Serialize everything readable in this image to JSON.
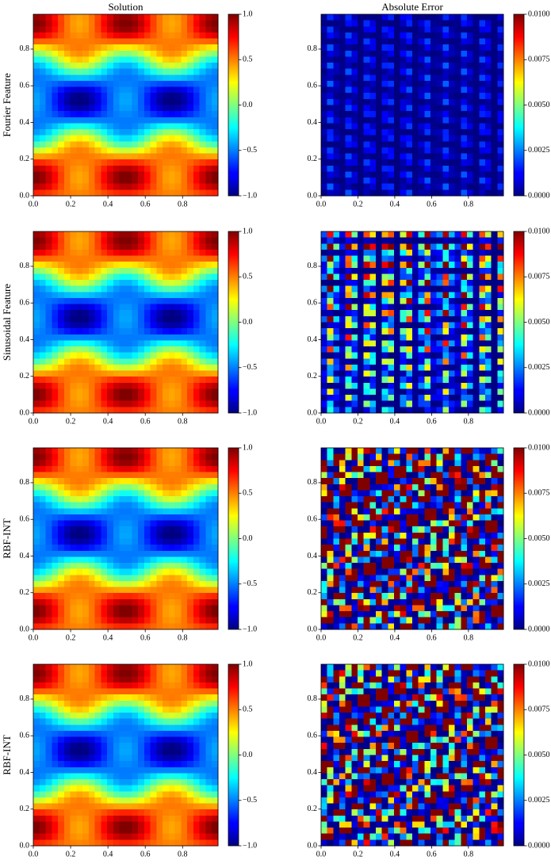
{
  "chart_data": [
    {
      "type": "heatmap",
      "title": "Solution",
      "ylabel": "Fourier Feature",
      "colormap": "jet",
      "xlim": [
        0,
        0.99
      ],
      "ylim": [
        0,
        0.99
      ],
      "xticks": [
        {
          "value": 0,
          "label": "0.0"
        },
        0.2,
        0.4,
        0.6,
        0.8
      ],
      "yticks": [
        {
          "value": 0,
          "label": "0.0"
        },
        0.2,
        0.4,
        0.6,
        0.8
      ],
      "clim": [
        -1,
        1
      ],
      "cticks": [
        {
          "value": -1,
          "label": "−1.0"
        },
        {
          "value": -0.5,
          "label": "−0.5"
        },
        {
          "value": 0,
          "label": "0.0"
        },
        {
          "value": 0.5,
          "label": "0.5"
        },
        {
          "value": 1,
          "label": "1.0"
        }
      ]
    },
    {
      "type": "heatmap",
      "title": "Absolute Error",
      "colormap": "jet",
      "xlim": [
        0,
        0.99
      ],
      "ylim": [
        0,
        0.99
      ],
      "xticks": [
        {
          "value": 0,
          "label": "0.0"
        },
        0.2,
        0.4,
        0.6,
        0.8
      ],
      "yticks": [
        {
          "value": 0,
          "label": "0.0"
        },
        0.2,
        0.4,
        0.6,
        0.8
      ],
      "clim": [
        0,
        0.01
      ],
      "cticks": [
        {
          "value": 0,
          "label": "0.0000"
        },
        {
          "value": 0.0025,
          "label": "0.0025"
        },
        {
          "value": 0.005,
          "label": "0.0050"
        },
        {
          "value": 0.0075,
          "label": "0.0075"
        },
        {
          "value": 0.01,
          "label": "0.0100"
        }
      ]
    },
    {
      "type": "heatmap",
      "ylabel": "Sinusoidal Feature",
      "colormap": "jet",
      "xlim": [
        0,
        0.99
      ],
      "ylim": [
        0,
        0.99
      ],
      "xticks": [
        {
          "value": 0,
          "label": "0.0"
        },
        0.2,
        0.4,
        0.6,
        0.8
      ],
      "yticks": [
        {
          "value": 0,
          "label": "0.0"
        },
        0.2,
        0.4,
        0.6,
        0.8
      ],
      "clim": [
        -1,
        1
      ],
      "cticks": [
        {
          "value": -1,
          "label": "−1.0"
        },
        {
          "value": -0.5,
          "label": "−0.5"
        },
        {
          "value": 0,
          "label": "0.0"
        },
        {
          "value": 0.5,
          "label": "0.5"
        },
        {
          "value": 1,
          "label": "1.0"
        }
      ]
    },
    {
      "type": "heatmap",
      "colormap": "jet",
      "xlim": [
        0,
        0.99
      ],
      "ylim": [
        0,
        0.99
      ],
      "xticks": [
        {
          "value": 0,
          "label": "0.0"
        },
        0.2,
        0.4,
        0.6,
        0.8
      ],
      "yticks": [
        {
          "value": 0,
          "label": "0.0"
        },
        0.2,
        0.4,
        0.6,
        0.8
      ],
      "clim": [
        0,
        0.01
      ],
      "cticks": [
        {
          "value": 0,
          "label": "0.0000"
        },
        {
          "value": 0.0025,
          "label": "0.0025"
        },
        {
          "value": 0.005,
          "label": "0.0050"
        },
        {
          "value": 0.0075,
          "label": "0.0075"
        },
        {
          "value": 0.01,
          "label": "0.0100"
        }
      ]
    },
    {
      "type": "heatmap",
      "ylabel": "RBF-INT",
      "colormap": "jet",
      "xlim": [
        0,
        0.99
      ],
      "ylim": [
        0,
        0.99
      ],
      "xticks": [
        {
          "value": 0,
          "label": "0.0"
        },
        0.2,
        0.4,
        0.6,
        0.8
      ],
      "yticks": [
        {
          "value": 0,
          "label": "0.0"
        },
        0.2,
        0.4,
        0.6,
        0.8
      ],
      "clim": [
        -1,
        1
      ],
      "cticks": [
        {
          "value": -1,
          "label": "−1.0"
        },
        {
          "value": -0.5,
          "label": "−0.5"
        },
        {
          "value": 0,
          "label": "0.0"
        },
        {
          "value": 0.5,
          "label": "0.5"
        },
        {
          "value": 1,
          "label": "1.0"
        }
      ]
    },
    {
      "type": "heatmap",
      "colormap": "jet",
      "xlim": [
        0,
        0.99
      ],
      "ylim": [
        0,
        0.99
      ],
      "xticks": [
        {
          "value": 0,
          "label": "0.0"
        },
        0.2,
        0.4,
        0.6,
        0.8
      ],
      "yticks": [
        {
          "value": 0,
          "label": "0.0"
        },
        0.2,
        0.4,
        0.6,
        0.8
      ],
      "clim": [
        0,
        0.01
      ],
      "cticks": [
        {
          "value": 0,
          "label": "0.0000"
        },
        {
          "value": 0.0025,
          "label": "0.0025"
        },
        {
          "value": 0.005,
          "label": "0.0050"
        },
        {
          "value": 0.0075,
          "label": "0.0075"
        },
        {
          "value": 0.01,
          "label": "0.0100"
        }
      ]
    },
    {
      "type": "heatmap",
      "ylabel": "RBF-INT",
      "colormap": "jet",
      "xlim": [
        0,
        0.99
      ],
      "ylim": [
        0,
        0.99
      ],
      "xticks": [
        {
          "value": 0,
          "label": "0.0"
        },
        0.2,
        0.4,
        0.6,
        0.8
      ],
      "yticks": [
        {
          "value": 0,
          "label": "0.0"
        },
        0.2,
        0.4,
        0.6,
        0.8
      ],
      "clim": [
        -1,
        1
      ],
      "cticks": [
        {
          "value": -1,
          "label": "−1.0"
        },
        {
          "value": -0.5,
          "label": "−0.5"
        },
        {
          "value": 0,
          "label": "0.0"
        },
        {
          "value": 0.5,
          "label": "0.5"
        },
        {
          "value": 1,
          "label": "1.0"
        }
      ]
    },
    {
      "type": "heatmap",
      "colormap": "jet",
      "xlim": [
        0,
        0.99
      ],
      "ylim": [
        0,
        0.99
      ],
      "xticks": [
        {
          "value": 0,
          "label": "0.0"
        },
        0.2,
        0.4,
        0.6,
        0.8
      ],
      "yticks": [
        {
          "value": 0,
          "label": "0.0"
        },
        0.2,
        0.4,
        0.6,
        0.8
      ],
      "clim": [
        0,
        0.01
      ],
      "cticks": [
        {
          "value": 0,
          "label": "0.0000"
        },
        {
          "value": 0.0025,
          "label": "0.0025"
        },
        {
          "value": 0.005,
          "label": "0.0050"
        },
        {
          "value": 0.0075,
          "label": "0.0075"
        },
        {
          "value": 0.01,
          "label": "0.0100"
        }
      ]
    }
  ]
}
